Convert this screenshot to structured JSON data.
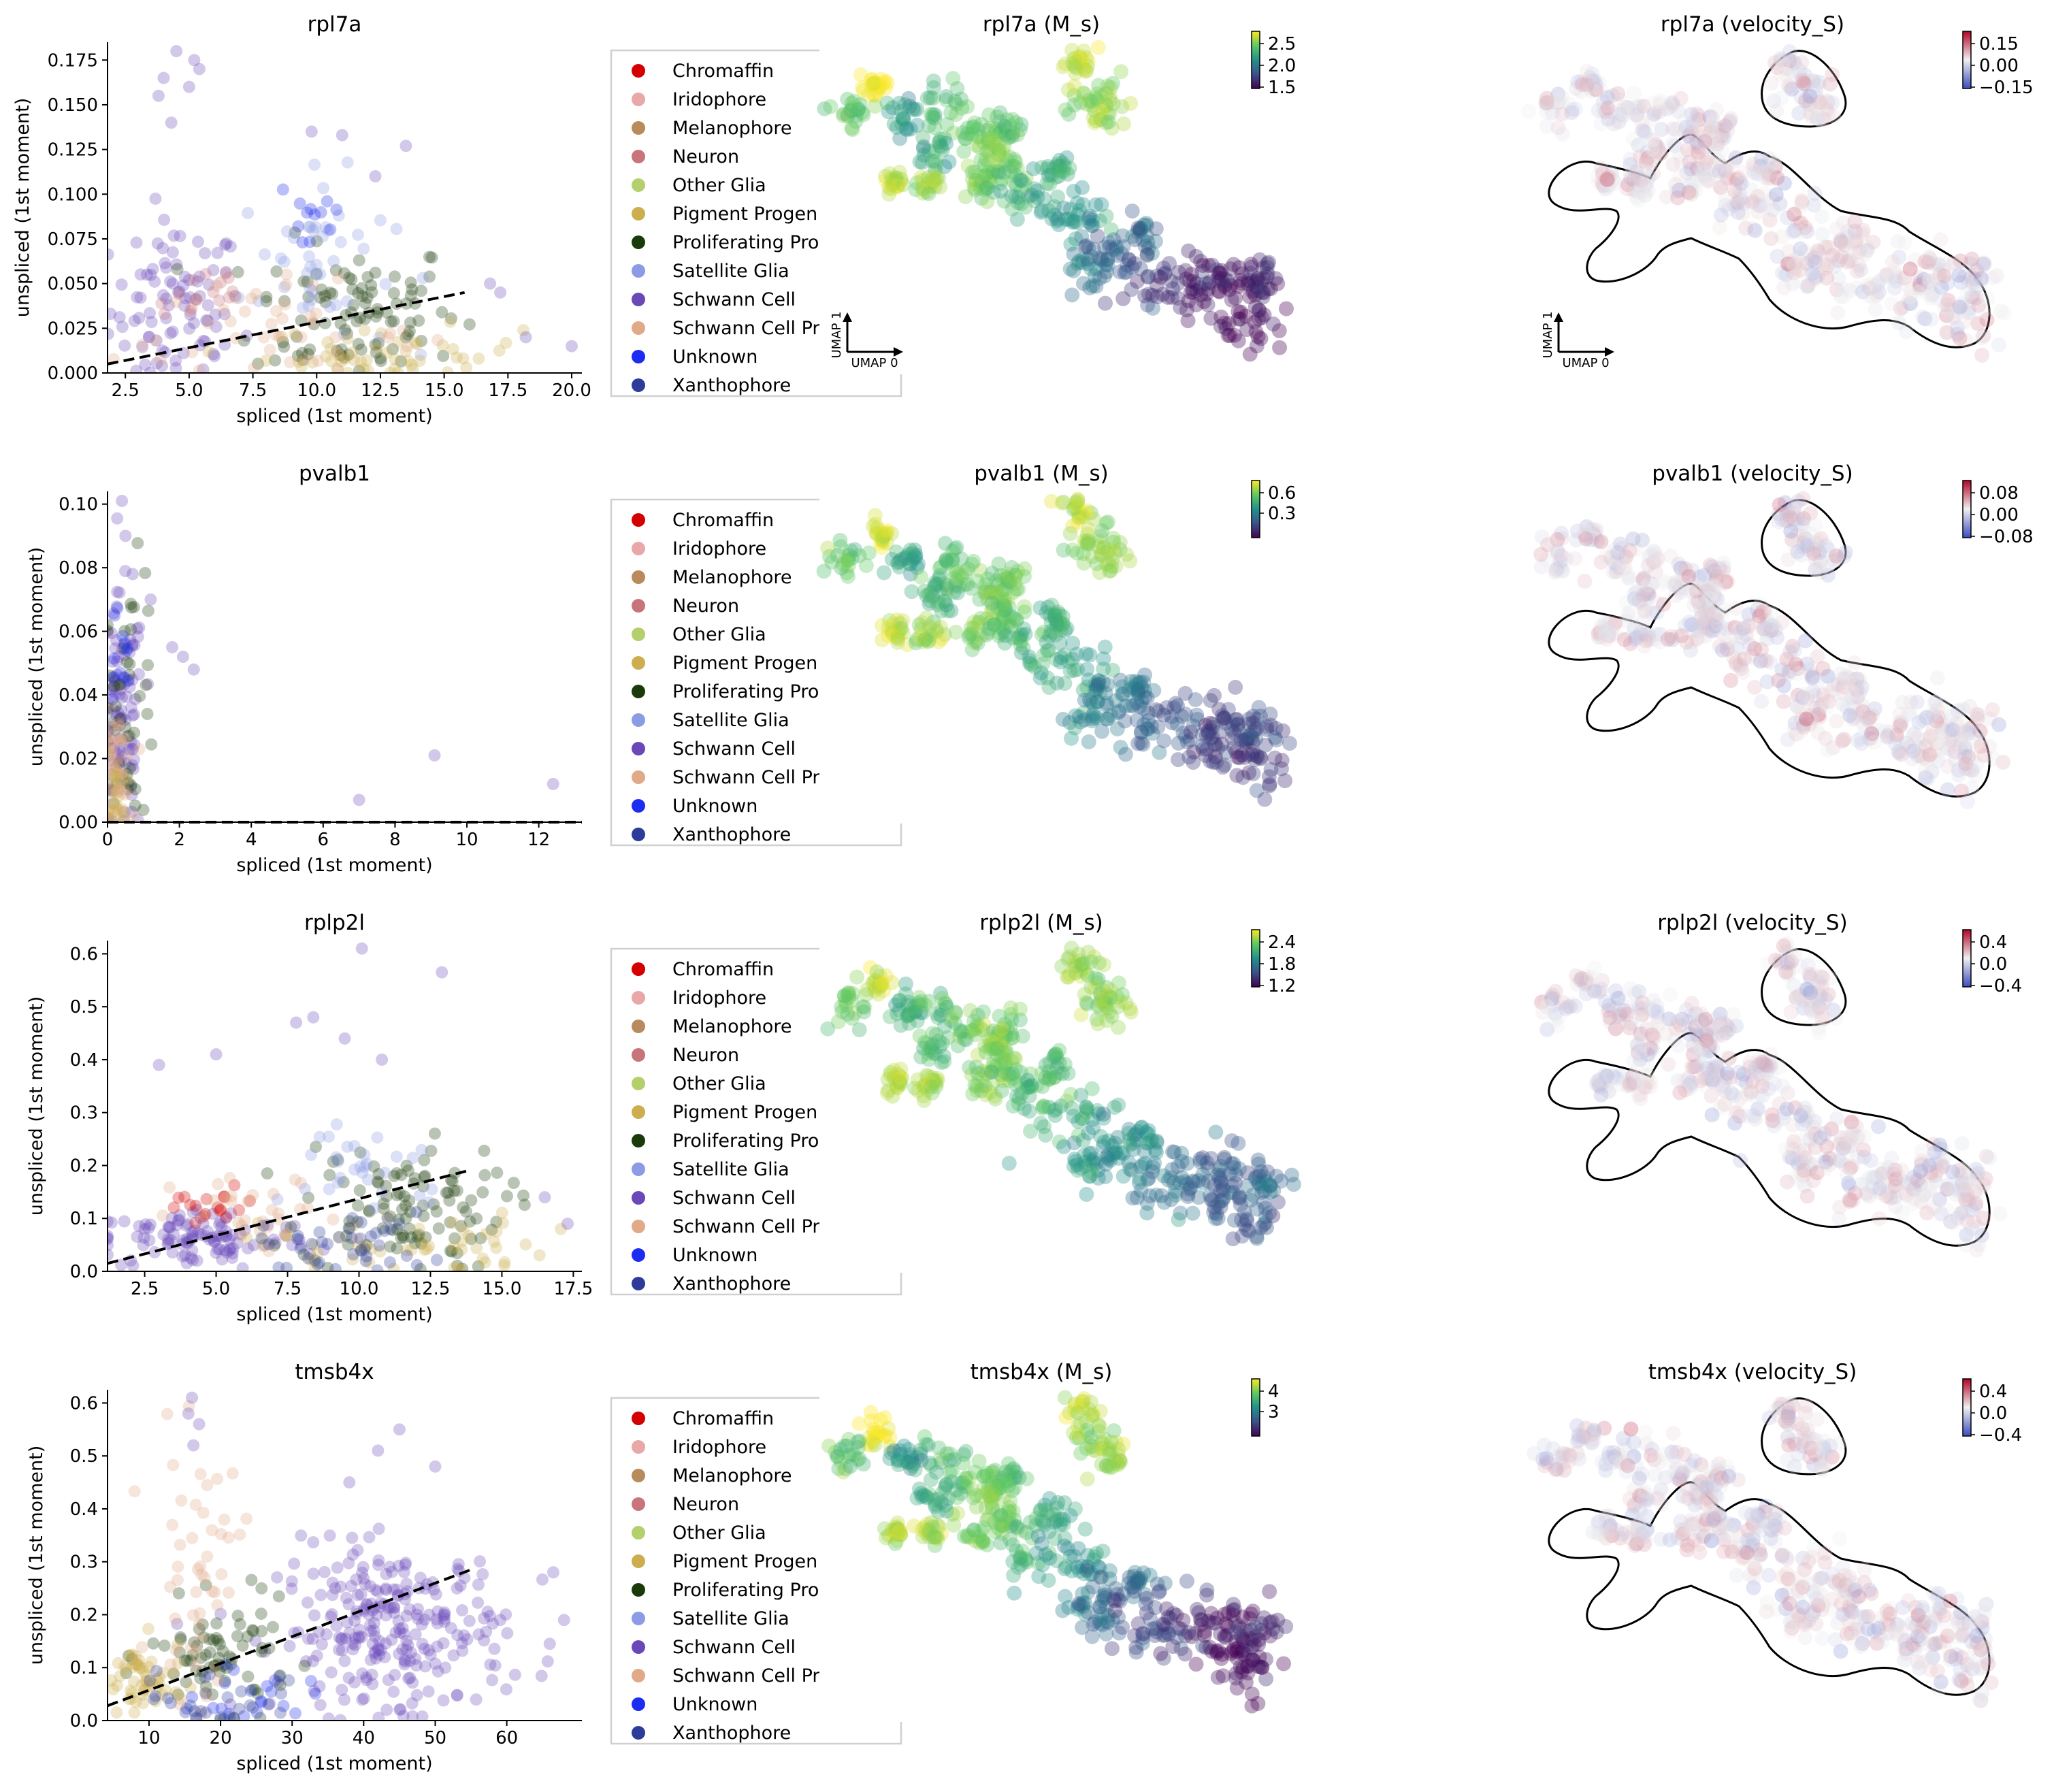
{
  "legend_entries": [
    {
      "label": "Chromaffin",
      "color": "#d40000"
    },
    {
      "label": "Iridophore",
      "color": "#e8a8a8"
    },
    {
      "label": "Melanophore",
      "color": "#b88a5c"
    },
    {
      "label": "Neuron",
      "color": "#c8747a"
    },
    {
      "label": "Other Glia",
      "color": "#b4d06c"
    },
    {
      "label": "Pigment Progen",
      "color": "#ccae4e"
    },
    {
      "label": "Proliferating Pro",
      "color": "#1b3a0a"
    },
    {
      "label": "Satellite Glia",
      "color": "#8c9ce4"
    },
    {
      "label": "Schwann Cell",
      "color": "#6a48b8"
    },
    {
      "label": "Schwann Cell Pr",
      "color": "#e0aa88"
    },
    {
      "label": "Unknown",
      "color": "#1c2cf0"
    },
    {
      "label": "Xanthophore",
      "color": "#2c3c98"
    }
  ],
  "umap_arrows": {
    "x_label": "UMAP 0",
    "y_label": "UMAP 1"
  },
  "chart_data": [
    {
      "type": "scatter",
      "title": "rpl7a",
      "xlabel": "spliced (1st moment)",
      "ylabel": "unspliced (1st moment)",
      "xlim": [
        1.8,
        20.4
      ],
      "ylim": [
        0,
        0.185
      ],
      "xticks": [
        "2.5",
        "5.0",
        "7.5",
        "10.0",
        "12.5",
        "15.0",
        "17.5",
        "20.0"
      ],
      "xtick_values": [
        2.5,
        5,
        7.5,
        10,
        12.5,
        15,
        17.5,
        20
      ],
      "yticks": [
        "0.000",
        "0.025",
        "0.050",
        "0.075",
        "0.100",
        "0.125",
        "0.150",
        "0.175"
      ],
      "ytick_values": [
        0,
        0.025,
        0.05,
        0.075,
        0.1,
        0.125,
        0.15,
        0.175
      ],
      "fit_line": [
        [
          1.8,
          0.005
        ],
        [
          15.8,
          0.045
        ]
      ],
      "clusters": [
        {
          "color": "#6a48b8",
          "cx": 4.5,
          "cy": 0.035,
          "sx": 1.3,
          "sy": 0.025,
          "n": 90
        },
        {
          "color": "#1b3a0a",
          "cx": 11.5,
          "cy": 0.035,
          "sx": 2.0,
          "sy": 0.02,
          "n": 100
        },
        {
          "color": "#8c9ce4",
          "cx": 10.0,
          "cy": 0.06,
          "sx": 1.5,
          "sy": 0.025,
          "n": 45
        },
        {
          "color": "#ccae4e",
          "cx": 13.0,
          "cy": 0.01,
          "sx": 2.5,
          "sy": 0.008,
          "n": 50
        },
        {
          "color": "#e0aa88",
          "cx": 8.0,
          "cy": 0.02,
          "sx": 3.0,
          "sy": 0.015,
          "n": 45
        },
        {
          "color": "#c8747a",
          "cx": 5.5,
          "cy": 0.045,
          "sx": 1.0,
          "sy": 0.01,
          "n": 15
        },
        {
          "color": "#1c2cf0",
          "cx": 9.8,
          "cy": 0.09,
          "sx": 0.8,
          "sy": 0.015,
          "n": 12
        }
      ],
      "points": [
        [
          4.5,
          0.18
        ],
        [
          5.2,
          0.175
        ],
        [
          4.0,
          0.165
        ],
        [
          3.8,
          0.155
        ],
        [
          5.4,
          0.17
        ],
        [
          4.3,
          0.14
        ],
        [
          5.0,
          0.16
        ],
        [
          9.8,
          0.135
        ],
        [
          11.0,
          0.133
        ],
        [
          13.5,
          0.127
        ],
        [
          12.3,
          0.11
        ],
        [
          20.0,
          0.015
        ],
        [
          18.2,
          0.02
        ],
        [
          16.8,
          0.05
        ],
        [
          17.2,
          0.045
        ]
      ]
    },
    {
      "type": "scatter",
      "title": "pvalb1",
      "xlabel": "spliced (1st moment)",
      "ylabel": "unspliced (1st moment)",
      "xlim": [
        0,
        13.2
      ],
      "ylim": [
        0,
        0.104
      ],
      "xticks": [
        "0",
        "2",
        "4",
        "6",
        "8",
        "10",
        "12"
      ],
      "xtick_values": [
        0,
        2,
        4,
        6,
        8,
        10,
        12
      ],
      "yticks": [
        "0.00",
        "0.02",
        "0.04",
        "0.06",
        "0.08",
        "0.10"
      ],
      "ytick_values": [
        0,
        0.02,
        0.04,
        0.06,
        0.08,
        0.1
      ],
      "fit_line": [
        [
          0,
          0
        ],
        [
          13.2,
          0
        ]
      ],
      "clusters": [
        {
          "color": "#6a48b8",
          "cx": 0.4,
          "cy": 0.03,
          "sx": 0.3,
          "sy": 0.02,
          "n": 100
        },
        {
          "color": "#1b3a0a",
          "cx": 0.6,
          "cy": 0.04,
          "sx": 0.4,
          "sy": 0.02,
          "n": 45
        },
        {
          "color": "#e0aa88",
          "cx": 0.25,
          "cy": 0.015,
          "sx": 0.2,
          "sy": 0.01,
          "n": 40
        },
        {
          "color": "#1c2cf0",
          "cx": 0.3,
          "cy": 0.05,
          "sx": 0.2,
          "sy": 0.01,
          "n": 12
        },
        {
          "color": "#ccae4e",
          "cx": 0.2,
          "cy": 0.01,
          "sx": 0.15,
          "sy": 0.008,
          "n": 20
        }
      ],
      "points": [
        [
          0.4,
          0.101
        ],
        [
          0.5,
          0.09
        ],
        [
          0.7,
          0.078
        ],
        [
          1.2,
          0.07
        ],
        [
          2.1,
          0.052
        ],
        [
          2.4,
          0.048
        ],
        [
          9.1,
          0.021
        ],
        [
          7.0,
          0.007
        ],
        [
          12.4,
          0.012
        ],
        [
          1.8,
          0.055
        ]
      ]
    },
    {
      "type": "scatter",
      "title": "rplp2l",
      "xlabel": "spliced (1st moment)",
      "ylabel": "unspliced (1st moment)",
      "xlim": [
        1.2,
        17.8
      ],
      "ylim": [
        0,
        0.625
      ],
      "xticks": [
        "2.5",
        "5.0",
        "7.5",
        "10.0",
        "12.5",
        "15.0",
        "17.5"
      ],
      "xtick_values": [
        2.5,
        5,
        7.5,
        10,
        12.5,
        15,
        17.5
      ],
      "yticks": [
        "0.0",
        "0.1",
        "0.2",
        "0.3",
        "0.4",
        "0.5",
        "0.6"
      ],
      "ytick_values": [
        0,
        0.1,
        0.2,
        0.3,
        0.4,
        0.5,
        0.6
      ],
      "fit_line": [
        [
          1.2,
          0.015
        ],
        [
          13.8,
          0.19
        ]
      ],
      "clusters": [
        {
          "color": "#6a48b8",
          "cx": 4.5,
          "cy": 0.06,
          "sx": 2.0,
          "sy": 0.03,
          "n": 110
        },
        {
          "color": "#1b3a0a",
          "cx": 11.5,
          "cy": 0.12,
          "sx": 1.8,
          "sy": 0.06,
          "n": 110
        },
        {
          "color": "#ccae4e",
          "cx": 11.5,
          "cy": 0.05,
          "sx": 2.5,
          "sy": 0.03,
          "n": 50
        },
        {
          "color": "#d40000",
          "cx": 4.8,
          "cy": 0.12,
          "sx": 1.0,
          "sy": 0.02,
          "n": 18
        },
        {
          "color": "#e0aa88",
          "cx": 6.5,
          "cy": 0.1,
          "sx": 1.5,
          "sy": 0.04,
          "n": 30
        },
        {
          "color": "#8c9ce4",
          "cx": 10.5,
          "cy": 0.2,
          "sx": 1.5,
          "sy": 0.05,
          "n": 30
        },
        {
          "color": "#2c3c98",
          "cx": 9.5,
          "cy": 0.05,
          "sx": 1.5,
          "sy": 0.03,
          "n": 40
        }
      ],
      "points": [
        [
          10.1,
          0.61
        ],
        [
          12.9,
          0.565
        ],
        [
          8.4,
          0.48
        ],
        [
          7.8,
          0.47
        ],
        [
          5.0,
          0.41
        ],
        [
          3.0,
          0.39
        ],
        [
          10.8,
          0.4
        ],
        [
          9.5,
          0.44
        ],
        [
          17.3,
          0.09
        ],
        [
          16.5,
          0.14
        ]
      ]
    },
    {
      "type": "scatter",
      "title": "tmsb4x",
      "xlabel": "spliced (1st moment)",
      "ylabel": "unspliced (1st moment)",
      "xlim": [
        4.2,
        70.5
      ],
      "ylim": [
        0,
        0.625
      ],
      "xticks": [
        "10",
        "20",
        "30",
        "40",
        "50",
        "60"
      ],
      "xtick_values": [
        10,
        20,
        30,
        40,
        50,
        60
      ],
      "yticks": [
        "0.0",
        "0.1",
        "0.2",
        "0.3",
        "0.4",
        "0.5",
        "0.6"
      ],
      "ytick_values": [
        0,
        0.1,
        0.2,
        0.3,
        0.4,
        0.5,
        0.6
      ],
      "fit_line": [
        [
          4.2,
          0.028
        ],
        [
          55.0,
          0.285
        ]
      ],
      "clusters": [
        {
          "color": "#6a48b8",
          "cx": 44,
          "cy": 0.17,
          "sx": 8,
          "sy": 0.08,
          "n": 260
        },
        {
          "color": "#1b3a0a",
          "cx": 20,
          "cy": 0.12,
          "sx": 5,
          "sy": 0.05,
          "n": 75
        },
        {
          "color": "#ccae4e",
          "cx": 9,
          "cy": 0.07,
          "sx": 3,
          "sy": 0.04,
          "n": 55
        },
        {
          "color": "#1c2cf0",
          "cx": 25,
          "cy": 0.05,
          "sx": 4,
          "sy": 0.03,
          "n": 20
        },
        {
          "color": "#e0aa88",
          "cx": 17,
          "cy": 0.28,
          "sx": 3,
          "sy": 0.12,
          "n": 50
        },
        {
          "color": "#2c3c98",
          "cx": 19,
          "cy": 0.04,
          "sx": 5,
          "sy": 0.03,
          "n": 30
        }
      ],
      "points": [
        [
          16.0,
          0.61
        ],
        [
          15.5,
          0.58
        ],
        [
          17.0,
          0.56
        ],
        [
          16.2,
          0.52
        ],
        [
          68.0,
          0.19
        ],
        [
          66.5,
          0.28
        ],
        [
          45.0,
          0.55
        ],
        [
          42.0,
          0.51
        ],
        [
          50.0,
          0.48
        ],
        [
          38.0,
          0.45
        ]
      ]
    }
  ],
  "embedding_panels": [
    {
      "title": "rpl7a (M_s)",
      "cmap": "viridis",
      "ticks": [
        "2.5",
        "2.0",
        "1.5"
      ],
      "outline": false,
      "arrows": true
    },
    {
      "title": "rpl7a (velocity_S)",
      "cmap": "coolwarm",
      "ticks": [
        "0.15",
        "0.00",
        "−0.15"
      ],
      "outline": true,
      "arrows": true
    },
    {
      "title": "pvalb1 (M_s)",
      "cmap": "viridis",
      "ticks": [
        "0.6",
        "0.3"
      ],
      "outline": false,
      "arrows": false
    },
    {
      "title": "pvalb1 (velocity_S)",
      "cmap": "coolwarm",
      "ticks": [
        "0.08",
        "0.00",
        "−0.08"
      ],
      "outline": true,
      "arrows": false
    },
    {
      "title": "rplp2l (M_s)",
      "cmap": "viridis",
      "ticks": [
        "2.4",
        "1.8",
        "1.2"
      ],
      "outline": false,
      "arrows": false
    },
    {
      "title": "rplp2l (velocity_S)",
      "cmap": "coolwarm",
      "ticks": [
        "0.4",
        "0.0",
        "−0.4"
      ],
      "outline": true,
      "arrows": false
    },
    {
      "title": "tmsb4x (M_s)",
      "cmap": "viridis",
      "ticks": [
        "4",
        "3"
      ],
      "outline": false,
      "arrows": false
    },
    {
      "title": "tmsb4x (velocity_S)",
      "cmap": "coolwarm",
      "ticks": [
        "0.4",
        "0.0",
        "−0.4"
      ],
      "outline": true,
      "arrows": false
    }
  ]
}
